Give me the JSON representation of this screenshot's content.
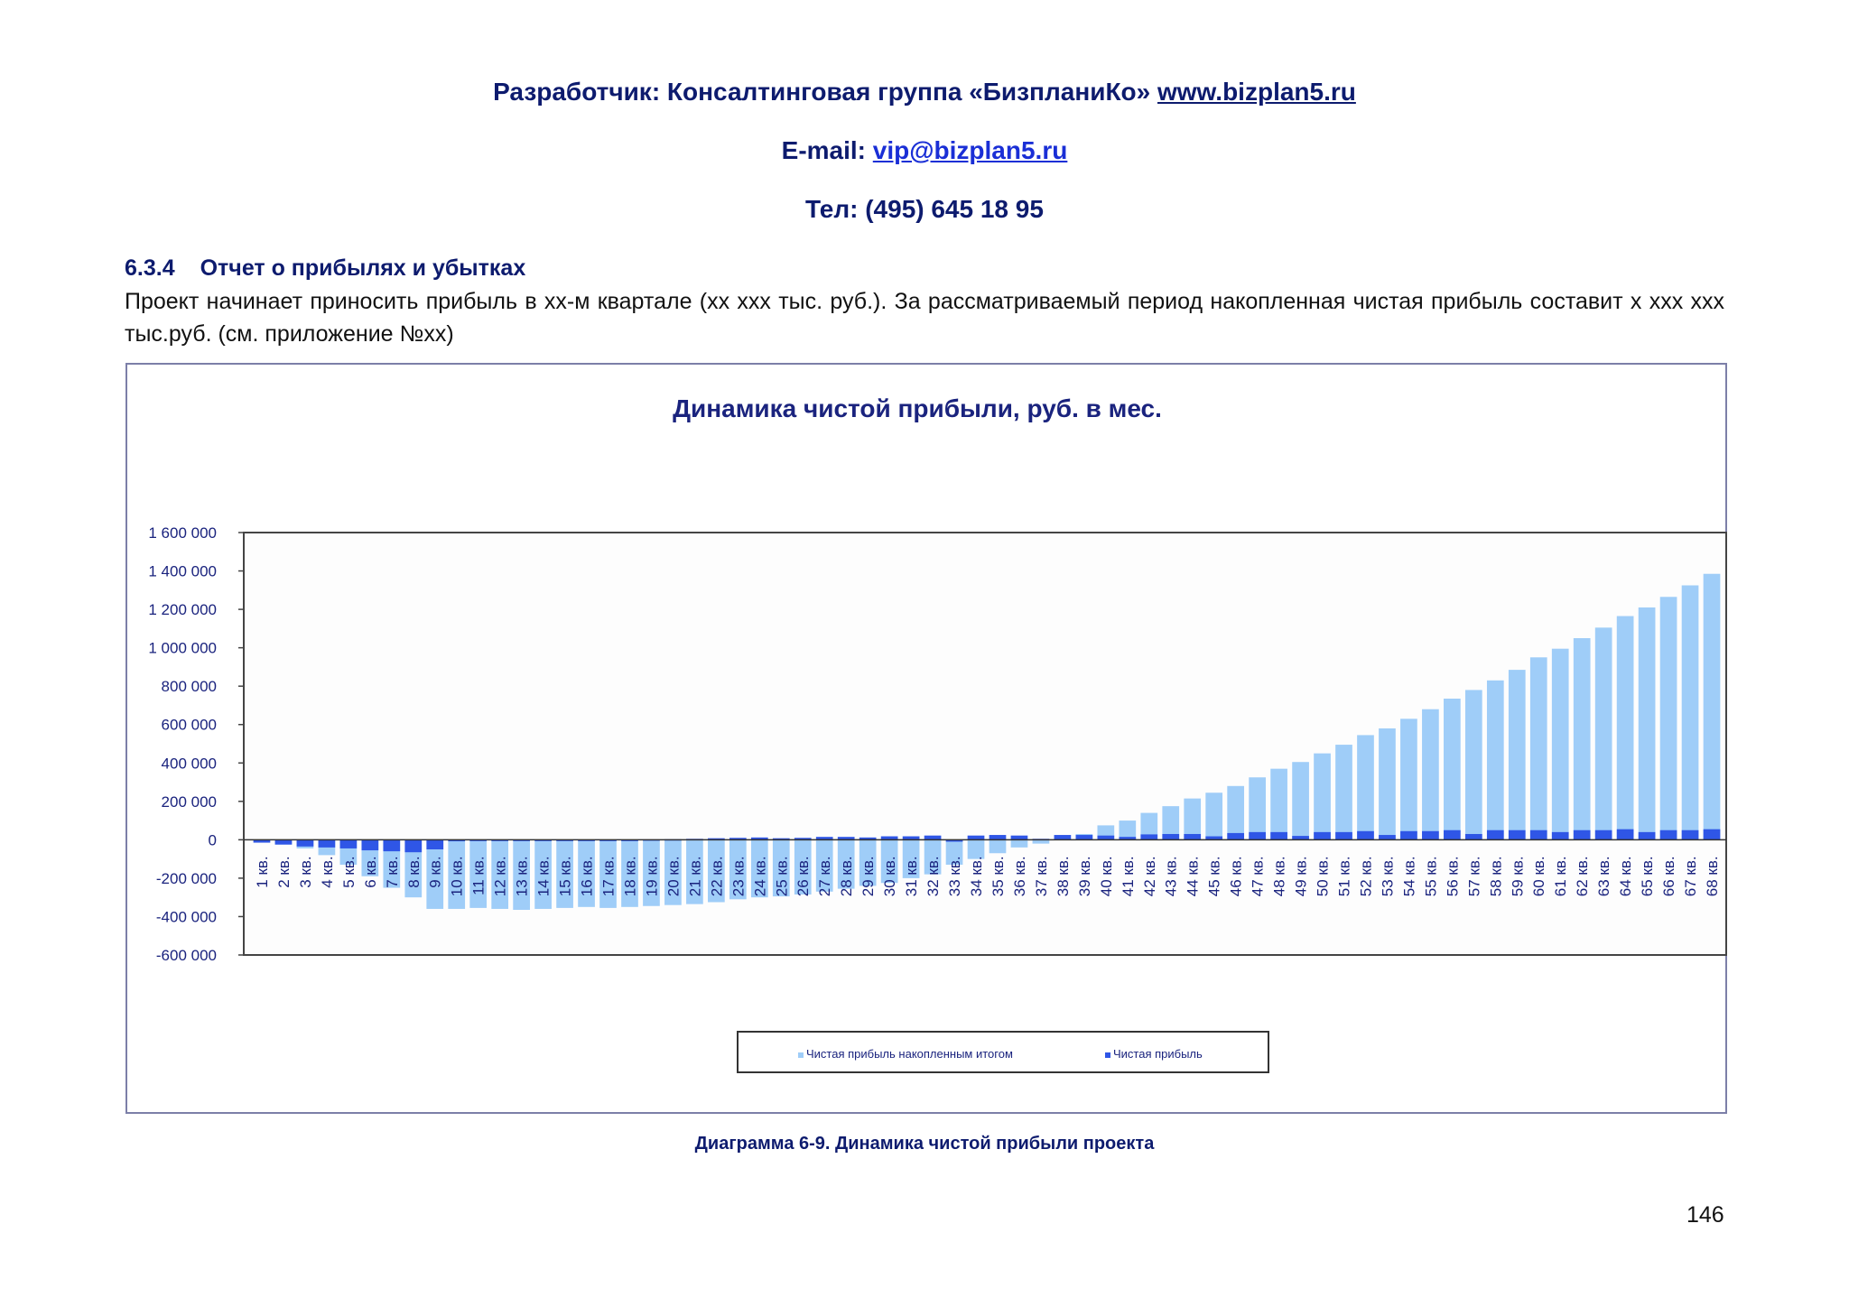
{
  "header": {
    "developer_prefix": "Разработчик: Консалтинговая группа «БизпланиКо»",
    "site": "www.bizplan5.ru",
    "email_label": "E-mail:",
    "email": "vip@bizplan5.ru",
    "phone": "Тел: (495) 645 18 95"
  },
  "section": {
    "number": "6.3.4",
    "title": "Отчет о прибылях и убытках",
    "paragraph": "Проект начинает приносить прибыль в хх-м квартале (хх ххх тыс. руб.). За рассматриваемый период накопленная чистая прибыль составит х ххх ххх тыс.руб. (см. приложение №хх)"
  },
  "colors": {
    "cumulative": "#9fcdf8",
    "net": "#2f56e6",
    "title_text": "#1a237e"
  },
  "chart_data": {
    "type": "bar",
    "title": "Динамика чистой прибыли, руб. в мес.",
    "ylim": [
      -600000,
      1600000
    ],
    "yticks": [
      1600000,
      1400000,
      1200000,
      1000000,
      800000,
      600000,
      400000,
      200000,
      0,
      -200000,
      -400000,
      -600000
    ],
    "ytick_labels": [
      "1 600 000",
      "1 400 000",
      "1 200 000",
      "1 000 000",
      "800 000",
      "600 000",
      "400 000",
      "200 000",
      "0",
      "-200 000",
      "-400 000",
      "-600 000"
    ],
    "grid": false,
    "legend_position": "bottom-center",
    "categories": [
      "1 кв.",
      "2 кв.",
      "3 кв.",
      "4 кв.",
      "5 кв.",
      "6 кв.",
      "7 кв.",
      "8 кв.",
      "9 кв.",
      "10 кв.",
      "11 кв.",
      "12 кв.",
      "13 кв.",
      "14 кв.",
      "15 кв.",
      "16 кв.",
      "17 кв.",
      "18 кв.",
      "19 кв.",
      "20 кв.",
      "21 кв.",
      "22 кв.",
      "23 кв.",
      "24 кв.",
      "25 кв.",
      "26 кв.",
      "27 кв.",
      "28 кв.",
      "29 кв.",
      "30 кв.",
      "31 кв.",
      "32 кв.",
      "33 кв.",
      "34 кв.",
      "35 кв.",
      "36 кв.",
      "37 кв.",
      "38 кв.",
      "39 кв.",
      "40 кв.",
      "41 кв.",
      "42 кв.",
      "43 кв.",
      "44 кв.",
      "45 кв.",
      "46 кв.",
      "47 кв.",
      "48 кв.",
      "49 кв.",
      "50 кв.",
      "51 кв.",
      "52 кв.",
      "53 кв.",
      "54 кв.",
      "55 кв.",
      "56 кв.",
      "57 кв.",
      "58 кв.",
      "59 кв.",
      "60 кв.",
      "61 кв.",
      "62 кв.",
      "63 кв.",
      "64 кв.",
      "65 кв.",
      "66 кв.",
      "67 кв.",
      "68 кв."
    ],
    "series": [
      {
        "name": "Чистая прибыль накопленным итогом",
        "values": [
          -5000,
          -25000,
          -45000,
          -80000,
          -130000,
          -190000,
          -250000,
          -300000,
          -360000,
          -360000,
          -355000,
          -360000,
          -365000,
          -360000,
          -355000,
          -350000,
          -355000,
          -350000,
          -345000,
          -340000,
          -335000,
          -325000,
          -310000,
          -300000,
          -295000,
          -285000,
          -270000,
          -255000,
          -240000,
          -225000,
          -200000,
          -180000,
          -130000,
          -100000,
          -70000,
          -40000,
          -20000,
          5000,
          30000,
          75000,
          100000,
          140000,
          175000,
          215000,
          245000,
          280000,
          325000,
          370000,
          405000,
          450000,
          495000,
          545000,
          580000,
          630000,
          680000,
          735000,
          780000,
          830000,
          885000,
          950000,
          995000,
          1050000,
          1105000,
          1165000,
          1210000,
          1265000,
          1325000,
          1385000
        ]
      },
      {
        "name": "Чистая прибыль",
        "values": [
          -15000,
          -25000,
          -35000,
          -40000,
          -45000,
          -55000,
          -60000,
          -65000,
          -50000,
          -8000,
          -5000,
          -3000,
          -5000,
          -4000,
          -3000,
          -2000,
          -3000,
          -2000,
          2000,
          3000,
          5000,
          8000,
          10000,
          12000,
          8000,
          10000,
          15000,
          15000,
          12000,
          18000,
          18000,
          22000,
          -10000,
          22000,
          25000,
          22000,
          5000,
          25000,
          25000,
          22000,
          15000,
          28000,
          30000,
          30000,
          18000,
          35000,
          40000,
          40000,
          20000,
          40000,
          40000,
          45000,
          25000,
          45000,
          45000,
          50000,
          30000,
          50000,
          50000,
          50000,
          40000,
          50000,
          50000,
          55000,
          40000,
          50000,
          50000,
          55000
        ]
      }
    ]
  },
  "legend": {
    "item1": "Чистая прибыль накопленным итогом",
    "item2": "Чистая прибыль"
  },
  "caption": "Диаграмма 6-9. Динамика чистой прибыли проекта",
  "page_number": "146"
}
